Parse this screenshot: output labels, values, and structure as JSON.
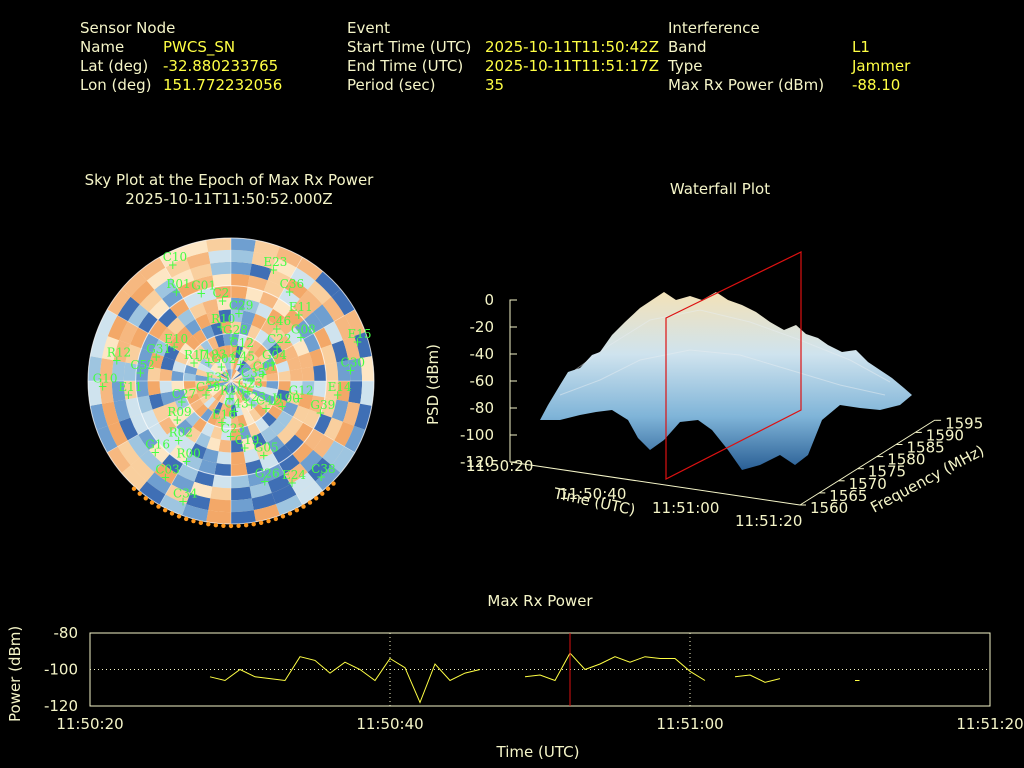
{
  "header": {
    "sensor": {
      "heading": "Sensor Node",
      "name_label": "Name",
      "name_value": "PWCS_SN",
      "lat_label": "Lat (deg)",
      "lat_value": "-32.880233765",
      "lon_label": "Lon (deg)",
      "lon_value": "151.772232056"
    },
    "event": {
      "heading": "Event",
      "start_label": "Start Time (UTC)",
      "start_value": "2025-10-11T11:50:42Z",
      "end_label": "End Time (UTC)",
      "end_value": "2025-10-11T11:51:17Z",
      "period_label": "Period (sec)",
      "period_value": "35"
    },
    "interference": {
      "heading": "Interference",
      "band_label": "Band",
      "band_value": "L1",
      "type_label": "Type",
      "type_value": "Jammer",
      "power_label": "Max Rx Power (dBm)",
      "power_value": "-88.10"
    }
  },
  "skyplot": {
    "title_line1": "Sky Plot at the Epoch of Max Rx Power",
    "title_line2": "2025-10-11T11:50:52.000Z",
    "satellites": [
      "C35",
      "G16",
      "C29",
      "C23",
      "R12",
      "G08",
      "E16",
      "C10",
      "G39",
      "C27",
      "C45",
      "G26",
      "E10",
      "C01",
      "C03",
      "C2",
      "C42",
      "G10",
      "E11",
      "C23",
      "G02",
      "E14",
      "R09",
      "C12",
      "E24",
      "G31",
      "G04",
      "C34",
      "G01",
      "J190",
      "E33",
      "C36",
      "C19",
      "J193",
      "C30",
      "R02",
      "G28",
      "C38",
      "C52",
      "C22",
      "R26",
      "R01",
      "G12",
      "C29",
      "E23",
      "G05",
      "R17",
      "E15",
      "R00",
      "R10",
      "G23",
      "E11",
      "C46",
      "C43"
    ],
    "colors": {
      "satellite": "#44ff44",
      "warm": "#f6b880",
      "cool": "#3f6fb5"
    }
  },
  "waterfall": {
    "title": "Waterfall Plot",
    "zlabel": "PSD (dBm)",
    "xlabel": "Time (UTC)",
    "ylabel": "Frequency (MHz)",
    "z_ticks": [
      "0",
      "-20",
      "-40",
      "-60",
      "-80",
      "-100",
      "-120"
    ],
    "time_ticks": [
      "11:50:20",
      "11:50:40",
      "11:51:00",
      "11:51:20"
    ],
    "freq_ticks": [
      "1560",
      "1565",
      "1570",
      "1575",
      "1580",
      "1585",
      "1590",
      "1595"
    ]
  },
  "chart_data": {
    "type": "line",
    "title": "Max Rx Power",
    "xlabel": "Time (UTC)",
    "ylabel": "Power (dBm)",
    "x_tick_labels": [
      "11:50:20",
      "11:50:40",
      "11:51:00",
      "11:51:20"
    ],
    "y_tick_labels": [
      "-80",
      "-100",
      "-120"
    ],
    "ylim": [
      -120,
      -80
    ],
    "xlim_seconds": [
      0,
      60
    ],
    "marker_time_seconds": 32,
    "segments": [
      [
        [
          8,
          -104
        ],
        [
          9,
          -106
        ],
        [
          10,
          -100
        ],
        [
          11,
          -104
        ],
        [
          12,
          -105
        ],
        [
          13,
          -106
        ],
        [
          14,
          -93
        ],
        [
          15,
          -95
        ],
        [
          16,
          -102
        ],
        [
          17,
          -96
        ],
        [
          18,
          -100
        ],
        [
          19,
          -106
        ],
        [
          20,
          -94
        ],
        [
          21,
          -99
        ],
        [
          22,
          -118
        ],
        [
          23,
          -97
        ],
        [
          24,
          -106
        ],
        [
          25,
          -102
        ],
        [
          26,
          -100
        ]
      ],
      [
        [
          29,
          -104
        ],
        [
          30,
          -103
        ],
        [
          31,
          -106
        ],
        [
          32,
          -91
        ],
        [
          33,
          -100
        ],
        [
          34,
          -97
        ],
        [
          35,
          -93
        ],
        [
          36,
          -96
        ],
        [
          37,
          -93
        ],
        [
          38,
          -94
        ],
        [
          39,
          -94
        ],
        [
          40,
          -101
        ],
        [
          41,
          -106
        ]
      ],
      [
        [
          43,
          -104
        ],
        [
          44,
          -103
        ],
        [
          45,
          -107
        ],
        [
          46,
          -105
        ]
      ],
      [
        [
          51,
          -106
        ],
        [
          51.3,
          -106
        ]
      ]
    ],
    "line_color": "#ffff44",
    "marker_color": "#dd1111"
  }
}
